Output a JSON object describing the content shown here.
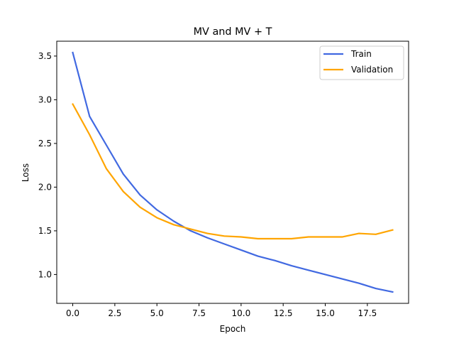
{
  "chart_data": {
    "type": "line",
    "title": "MV and MV + T",
    "xlabel": "Epoch",
    "ylabel": "Loss",
    "xlim": [
      -0.95,
      19.95
    ],
    "ylim": [
      0.67,
      3.67
    ],
    "xticks": [
      0.0,
      2.5,
      5.0,
      7.5,
      10.0,
      12.5,
      15.0,
      17.5
    ],
    "xtick_labels": [
      "0.0",
      "2.5",
      "5.0",
      "7.5",
      "10.0",
      "12.5",
      "15.0",
      "17.5"
    ],
    "yticks": [
      1.0,
      1.5,
      2.0,
      2.5,
      3.0,
      3.5
    ],
    "ytick_labels": [
      "1.0",
      "1.5",
      "2.0",
      "2.5",
      "3.0",
      "3.5"
    ],
    "grid": false,
    "legend_position": "top-right",
    "x": [
      0,
      1,
      2,
      3,
      4,
      5,
      6,
      7,
      8,
      9,
      10,
      11,
      12,
      13,
      14,
      15,
      16,
      17,
      18,
      19
    ],
    "series": [
      {
        "name": "Train",
        "color": "#4169e1",
        "values": [
          3.54,
          2.81,
          2.48,
          2.15,
          1.91,
          1.74,
          1.61,
          1.5,
          1.42,
          1.35,
          1.28,
          1.21,
          1.16,
          1.1,
          1.05,
          1.0,
          0.95,
          0.9,
          0.84,
          0.8
        ]
      },
      {
        "name": "Validation",
        "color": "#ffa500",
        "values": [
          2.95,
          2.6,
          2.21,
          1.95,
          1.77,
          1.65,
          1.57,
          1.52,
          1.47,
          1.44,
          1.43,
          1.41,
          1.41,
          1.41,
          1.43,
          1.43,
          1.43,
          1.47,
          1.46,
          1.51
        ]
      }
    ]
  }
}
